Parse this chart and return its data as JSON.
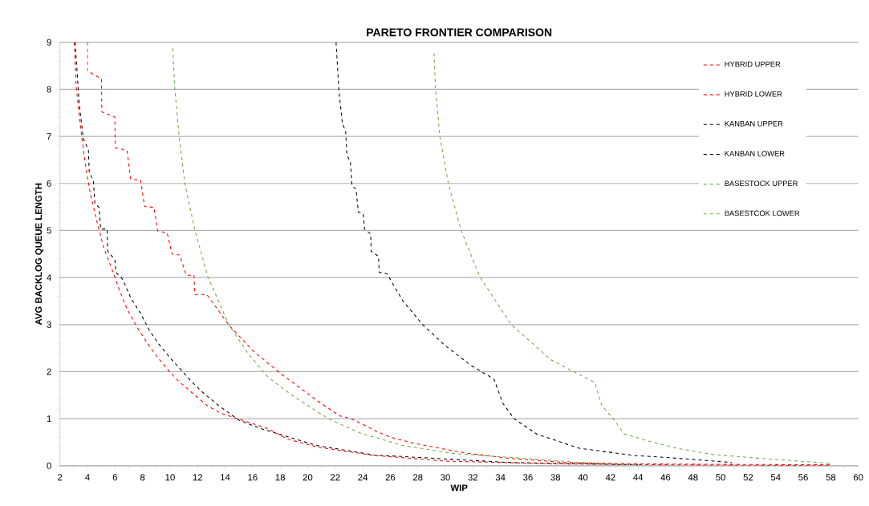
{
  "chart_data": {
    "type": "line",
    "title": "PARETO FRONTIER COMPARISON",
    "xlabel": "WIP",
    "ylabel": "AVG BACKLOG QUEUE LENGTH",
    "xlim": [
      2,
      60
    ],
    "ylim": [
      0,
      9
    ],
    "xticks": [
      2,
      4,
      6,
      8,
      10,
      12,
      14,
      16,
      18,
      20,
      22,
      24,
      26,
      28,
      30,
      32,
      34,
      36,
      38,
      40,
      42,
      44,
      46,
      48,
      50,
      52,
      54,
      56,
      58,
      60
    ],
    "yticks": [
      0,
      1,
      2,
      3,
      4,
      5,
      6,
      7,
      8,
      9
    ],
    "grid": "y",
    "legend": "right",
    "line_style": "dashed",
    "series": [
      {
        "name": "HYBRID UPPER",
        "color": "#ff0000",
        "x": [
          4.0,
          4.0,
          5.02,
          5.04,
          5.99,
          6.02,
          6.88,
          7.14,
          7.86,
          8.15,
          8.83,
          9.1,
          9.79,
          10.14,
          10.7,
          11.17,
          11.74,
          11.8,
          12.67,
          14.3,
          16.0,
          17.98,
          20.67,
          22.33,
          23.16,
          24.0,
          25.0,
          26.07,
          27.7,
          29.8,
          31.5,
          34.6,
          38.7,
          44,
          50,
          58
        ],
        "values": [
          9.0,
          8.39,
          8.22,
          7.52,
          7.41,
          6.76,
          6.7,
          6.09,
          6.07,
          5.51,
          5.49,
          4.99,
          4.95,
          4.5,
          4.48,
          4.05,
          4.05,
          3.64,
          3.64,
          2.98,
          2.45,
          1.97,
          1.39,
          1.06,
          1.0,
          0.88,
          0.73,
          0.6,
          0.48,
          0.36,
          0.27,
          0.16,
          0.07,
          0.04,
          0.03,
          0.02
        ]
      },
      {
        "name": "HYBRID LOWER",
        "color": "#ff0000",
        "x": [
          3.04,
          3.18,
          3.5,
          3.81,
          4.19,
          4.64,
          5.16,
          5.79,
          6.3,
          6.88,
          7.55,
          8.27,
          9.0,
          9.67,
          10.46,
          11.29,
          12.0,
          12.74,
          13.66,
          15.23,
          17.1,
          18.5,
          20.67,
          24.8,
          30.0,
          38.0,
          46.0,
          58.0
        ],
        "values": [
          9.0,
          8.06,
          7.19,
          6.48,
          5.81,
          5.25,
          4.65,
          4.17,
          3.75,
          3.33,
          2.97,
          2.64,
          2.34,
          2.1,
          1.84,
          1.63,
          1.45,
          1.27,
          1.12,
          0.97,
          0.79,
          0.57,
          0.4,
          0.22,
          0.1,
          0.04,
          0.02,
          0.0
        ]
      },
      {
        "name": "KANBAN UPPER",
        "color": "#000000",
        "x": [
          22.06,
          22.27,
          22.53,
          22.75,
          22.85,
          23.1,
          23.22,
          23.51,
          23.68,
          24.03,
          24.13,
          24.57,
          24.62,
          25.14,
          25.2,
          25.76,
          26.9,
          28.35,
          30.0,
          31.88,
          33.54,
          34.17,
          35.0,
          36.66,
          39.75,
          43.7,
          46.85,
          50.8
        ],
        "values": [
          9.0,
          7.96,
          7.25,
          7.13,
          6.59,
          6.47,
          5.94,
          5.88,
          5.39,
          5.36,
          5.03,
          4.93,
          4.56,
          4.45,
          4.11,
          4.08,
          3.51,
          3.0,
          2.55,
          2.13,
          1.84,
          1.33,
          1.0,
          0.67,
          0.37,
          0.22,
          0.16,
          0.07
        ]
      },
      {
        "name": "KANBAN LOWER",
        "color": "#000000",
        "x": [
          3.1,
          3.4,
          3.7,
          4.07,
          4.13,
          4.43,
          4.54,
          4.84,
          4.96,
          5.43,
          5.47,
          5.99,
          6.08,
          6.56,
          7.14,
          7.86,
          8.49,
          9.2,
          10.04,
          10.76,
          11.49,
          12.33,
          13.57,
          15.0,
          16.7,
          20.67,
          24.8,
          34.6,
          44.0
        ],
        "values": [
          9.0,
          7.7,
          6.95,
          6.71,
          6.24,
          6.05,
          5.57,
          5.49,
          5.03,
          5.03,
          4.56,
          4.38,
          4.11,
          3.96,
          3.57,
          3.24,
          2.88,
          2.58,
          2.28,
          2.05,
          1.81,
          1.57,
          1.27,
          0.97,
          0.78,
          0.43,
          0.23,
          0.07,
          0.02
        ]
      },
      {
        "name": "BASESTOCK UPPER",
        "color": "#70ad47",
        "x": [
          29.18,
          29.28,
          29.6,
          30.22,
          31.15,
          32.5,
          34.78,
          37.68,
          40.85,
          41.35,
          42.24,
          42.99,
          44.7,
          46.85,
          49.43,
          52.77,
          58.0
        ],
        "values": [
          8.77,
          8.03,
          7.0,
          5.99,
          5.0,
          4.02,
          3.0,
          2.25,
          1.77,
          1.29,
          0.98,
          0.68,
          0.53,
          0.37,
          0.24,
          0.16,
          0.05
        ]
      },
      {
        "name": "BASESTCOK LOWER",
        "color": "#70ad47",
        "x": [
          10.2,
          10.34,
          10.66,
          11.08,
          11.8,
          12.74,
          14.3,
          15.64,
          17.09,
          18.8,
          21.5,
          23.78,
          26.9,
          30.64,
          35.6,
          39.75,
          44.0
        ],
        "values": [
          8.87,
          8.03,
          7.0,
          5.99,
          5.01,
          4.02,
          2.98,
          2.4,
          1.89,
          1.51,
          1.0,
          0.7,
          0.43,
          0.26,
          0.16,
          0.07,
          0.02
        ]
      }
    ]
  }
}
